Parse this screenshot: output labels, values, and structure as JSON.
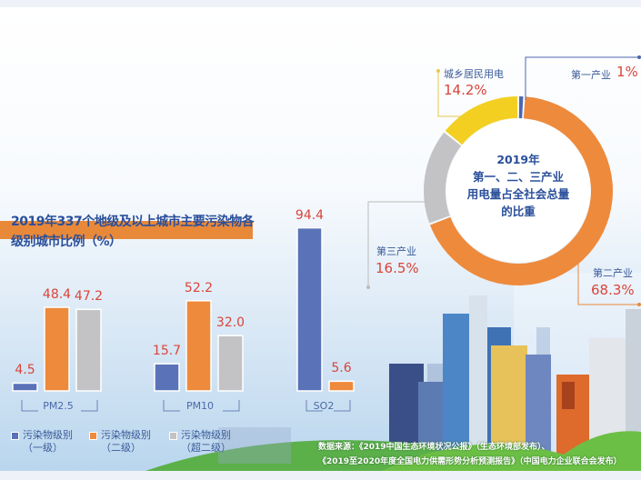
{
  "chart_data": [
    {
      "type": "bar",
      "title": "2019年337个地级及以上城市主要污染物各级别城市比例（%）",
      "categories": [
        "PM2.5",
        "PM10",
        "SO2"
      ],
      "series": [
        {
          "name": "污染物级别（一级）",
          "color": "#5a72b8",
          "values": [
            4.5,
            15.7,
            94.4
          ]
        },
        {
          "name": "污染物级别（二级）",
          "color": "#ee8a3c",
          "values": [
            48.4,
            52.2,
            5.6
          ]
        },
        {
          "name": "污染物级别（超二级）",
          "color": "#c3c3c6",
          "values": [
            47.2,
            32.0,
            null
          ]
        }
      ],
      "value_labels": [
        [
          "4.5",
          "48.4",
          "47.2"
        ],
        [
          "15.7",
          "52.2",
          "32.0"
        ],
        [
          "94.4",
          "5.6"
        ]
      ],
      "ylim": [
        0,
        100
      ],
      "legend": "bottom"
    },
    {
      "type": "pie",
      "title": "2019年第一、二、三产业用电量占全社会总量的比重",
      "title_lines": [
        "2019年",
        "第一、二、三产业",
        "用电量占全社会总量",
        "的比重"
      ],
      "slices": [
        {
          "label": "第一产业",
          "value": 1,
          "text": "1%",
          "color": "#4a66b0"
        },
        {
          "label": "第二产业",
          "value": 68.3,
          "text": "68.3%",
          "color": "#ee8a3c"
        },
        {
          "label": "第三产业",
          "value": 16.5,
          "text": "16.5%",
          "color": "#c3c3c6"
        },
        {
          "label": "城乡居民用电",
          "value": 14.2,
          "text": "14.2%",
          "color": "#f3cf22"
        }
      ]
    }
  ],
  "legend_items": [
    {
      "line1": "污染物级别",
      "line2": "（一级）"
    },
    {
      "line1": "污染物级别",
      "line2": "（二级）"
    },
    {
      "line1": "污染物级别",
      "line2": "（超二级）"
    }
  ],
  "group_labels": [
    "PM2.5",
    "PM10",
    "SO2"
  ],
  "source_lines": [
    "数据来源：《2019中国生态环境状况公报》（生态环境部发布）、",
    "《2019至2020年度全国电力供需形势分析预测报告》（中国电力企业联合会发布）"
  ]
}
